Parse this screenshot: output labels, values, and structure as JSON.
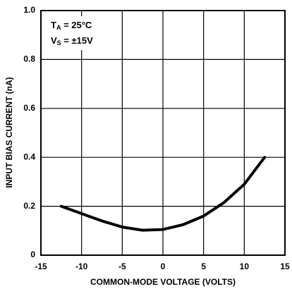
{
  "chart_data": {
    "type": "line",
    "xlabel": "COMMON-MODE VOLTAGE (VOLTS)",
    "ylabel": "INPUT BIAS CURRENT (nA)",
    "annotations": [
      {
        "main": "T",
        "sub": "A",
        "rest": " = 25°C"
      },
      {
        "main": "V",
        "sub": "S",
        "rest": " = ±15V"
      }
    ],
    "x": [
      -12.5,
      -10,
      -7.5,
      -5,
      -2.5,
      0,
      2.5,
      5,
      7.5,
      10,
      12.5
    ],
    "series": [
      {
        "color": "#000000",
        "values": [
          0.2,
          0.17,
          0.14,
          0.115,
          0.102,
          0.105,
          0.125,
          0.16,
          0.215,
          0.29,
          0.4
        ]
      }
    ],
    "xlim": [
      -15,
      15
    ],
    "xticks": [
      -15,
      -10,
      -5,
      0,
      5,
      10,
      15
    ],
    "ylim": [
      0,
      1
    ],
    "yticks": [
      0,
      0.2,
      0.4,
      0.6,
      0.8,
      {
        "value": 1,
        "label": "1.0"
      }
    ],
    "grid": true
  }
}
